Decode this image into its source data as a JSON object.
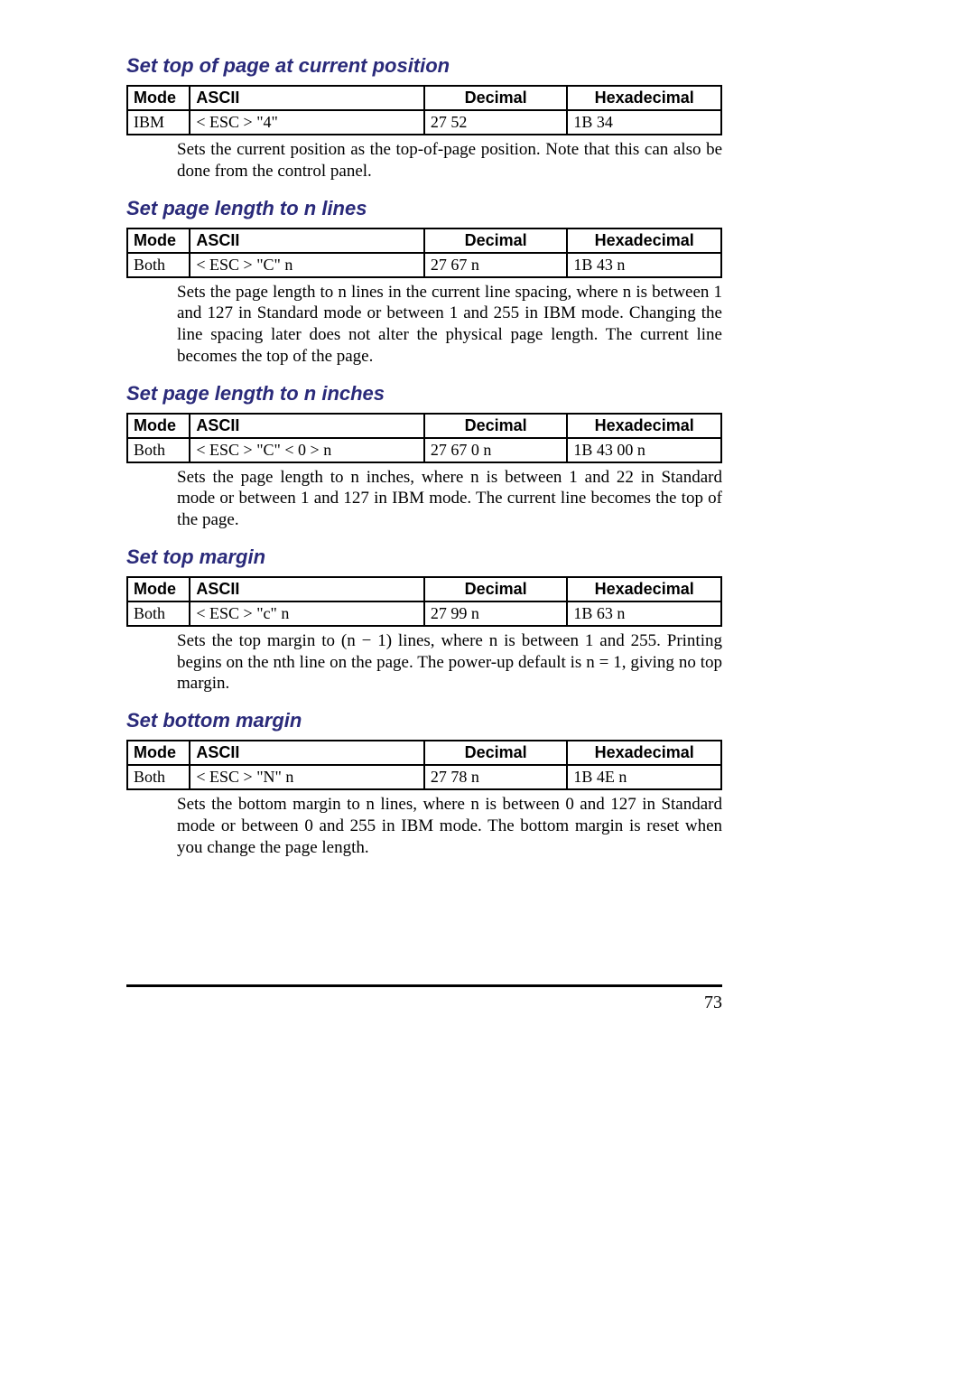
{
  "page_number": "73",
  "sections": [
    {
      "title": "Set top of page at current position",
      "table": {
        "headers": {
          "mode": "Mode",
          "ascii": "ASCII",
          "decimal": "Decimal",
          "hex": "Hexadecimal"
        },
        "row": {
          "mode": "IBM",
          "ascii": "< ESC >      \"4\"",
          "decimal": "27   52",
          "hex": "1B   34"
        }
      },
      "desc": "Sets the current position as the top-of-page position. Note that this can also be done from the control panel."
    },
    {
      "title": "Set page length to n lines",
      "table": {
        "headers": {
          "mode": "Mode",
          "ascii": "ASCII",
          "decimal": "Decimal",
          "hex": "Hexadecimal"
        },
        "row": {
          "mode": "Both",
          "ascii": "< ESC >      \"C\"      n",
          "decimal": "27   67   n",
          "hex": "1B   43   n"
        }
      },
      "desc": "Sets the page length to n lines in the current line spacing, where n is between 1 and 127 in Standard mode or between 1 and 255 in IBM mode. Changing the line spacing later does not alter the physical page length. The current line becomes the top of the page."
    },
    {
      "title": "Set page length to n inches",
      "table": {
        "headers": {
          "mode": "Mode",
          "ascii": "ASCII",
          "decimal": "Decimal",
          "hex": "Hexadecimal"
        },
        "row": {
          "mode": "Both",
          "ascii": "< ESC >      \"C\"   < 0 >   n",
          "decimal": "27   67   0   n",
          "hex": "1B   43   00   n"
        }
      },
      "desc": "Sets the page length to n inches, where n is between 1 and 22 in Standard mode or between 1 and 127 in IBM mode. The current line becomes the top of the page."
    },
    {
      "title": "Set top margin",
      "table": {
        "headers": {
          "mode": "Mode",
          "ascii": "ASCII",
          "decimal": "Decimal",
          "hex": "Hexadecimal"
        },
        "row": {
          "mode": "Both",
          "ascii": "< ESC >      \"c\"      n",
          "decimal": "27   99   n",
          "hex": "1B   63   n"
        }
      },
      "desc": "Sets the top margin to (n − 1) lines, where n is between 1 and 255. Printing begins on the nth line on the page. The power-up default is n = 1, giving no top margin."
    },
    {
      "title": "Set bottom margin",
      "table": {
        "headers": {
          "mode": "Mode",
          "ascii": "ASCII",
          "decimal": "Decimal",
          "hex": "Hexadecimal"
        },
        "row": {
          "mode": "Both",
          "ascii": "< ESC >      \"N\"      n",
          "decimal": "27   78   n",
          "hex": "1B   4E   n"
        }
      },
      "desc": "Sets the bottom margin to n lines, where n is between 0 and 127 in Standard mode or between 0 and 255 in IBM mode. The bottom margin is reset when you change the page length."
    }
  ]
}
